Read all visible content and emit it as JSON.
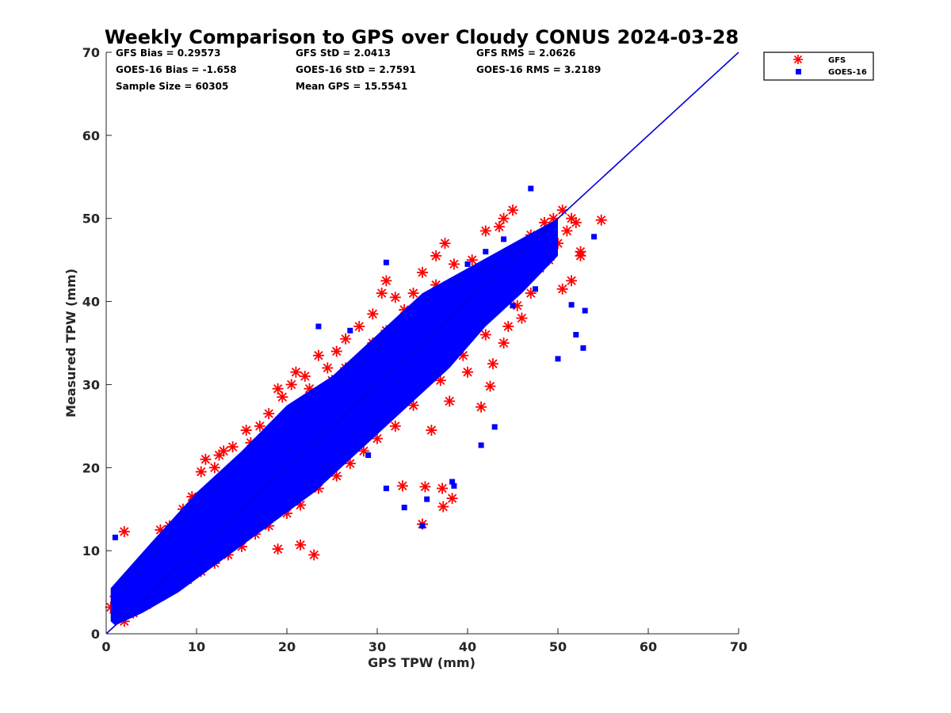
{
  "chart_data": {
    "type": "scatter",
    "title": "Weekly Comparison to GPS over Cloudy CONUS 2024-03-28",
    "xlabel": "GPS TPW (mm)",
    "ylabel": "Measured TPW (mm)",
    "xlim": [
      0,
      70
    ],
    "ylim": [
      0,
      70
    ],
    "x_ticks": [
      "0",
      "10",
      "20",
      "30",
      "40",
      "50",
      "60",
      "70"
    ],
    "y_ticks": [
      "0",
      "10",
      "20",
      "30",
      "40",
      "50",
      "60",
      "70"
    ],
    "grid": false,
    "legend_position": "top-right outside",
    "reference_line": {
      "label": "",
      "x": [
        0,
        70
      ],
      "y": [
        0,
        70
      ],
      "color": "#0000dd"
    },
    "stats": [
      [
        "GFS Bias = 0.29573",
        "GFS StD = 2.0413",
        "GFS RMS = 2.0626"
      ],
      [
        "GOES-16 Bias = -1.658",
        "GOES-16 StD = 2.7591",
        "GOES-16 RMS = 3.2189"
      ],
      [
        "Sample Size = 60305",
        "Mean GPS = 15.5541",
        ""
      ]
    ],
    "series": [
      {
        "name": "GFS",
        "marker": "asterisk",
        "color": "#ff0000",
        "points": [
          [
            0.5,
            3.2
          ],
          [
            1.0,
            4.5
          ],
          [
            1.5,
            3.0
          ],
          [
            2.0,
            1.5
          ],
          [
            2.5,
            2.5
          ],
          [
            3.0,
            3.8
          ],
          [
            3.5,
            5.0
          ],
          [
            4.0,
            6.2
          ],
          [
            4.5,
            8.5
          ],
          [
            5.0,
            9.0
          ],
          [
            5.5,
            6.5
          ],
          [
            6.0,
            12.5
          ],
          [
            7.0,
            13.0
          ],
          [
            7.5,
            11.0
          ],
          [
            8.5,
            15.0
          ],
          [
            9.5,
            16.5
          ],
          [
            10.5,
            19.5
          ],
          [
            11.0,
            21.0
          ],
          [
            12.0,
            20.0
          ],
          [
            12.5,
            21.5
          ],
          [
            13.0,
            22.0
          ],
          [
            14.0,
            22.5
          ],
          [
            15.5,
            24.5
          ],
          [
            16.0,
            23.0
          ],
          [
            17.0,
            25.0
          ],
          [
            18.0,
            26.5
          ],
          [
            19.0,
            29.5
          ],
          [
            19.5,
            28.5
          ],
          [
            20.5,
            30.0
          ],
          [
            21.0,
            31.5
          ],
          [
            22.0,
            31.0
          ],
          [
            22.5,
            29.5
          ],
          [
            23.5,
            33.5
          ],
          [
            24.5,
            32.0
          ],
          [
            25.5,
            34.0
          ],
          [
            26.5,
            35.5
          ],
          [
            28.0,
            37.0
          ],
          [
            29.5,
            38.5
          ],
          [
            31.0,
            42.5
          ],
          [
            32.0,
            40.5
          ],
          [
            33.0,
            39.0
          ],
          [
            34.0,
            41.0
          ],
          [
            35.0,
            43.5
          ],
          [
            36.5,
            45.5
          ],
          [
            37.5,
            47.0
          ],
          [
            38.5,
            44.5
          ],
          [
            40.5,
            45.0
          ],
          [
            42.0,
            48.5
          ],
          [
            43.5,
            49.0
          ],
          [
            44.0,
            50.0
          ],
          [
            45.0,
            51.0
          ],
          [
            47.0,
            48.0
          ],
          [
            48.5,
            49.5
          ],
          [
            49.5,
            50.0
          ],
          [
            50.5,
            51.0
          ],
          [
            51.0,
            48.5
          ],
          [
            51.5,
            50.0
          ],
          [
            52.0,
            49.5
          ],
          [
            52.5,
            45.5
          ],
          [
            52.5,
            46.0
          ],
          [
            49.0,
            45.0
          ],
          [
            51.5,
            42.5
          ],
          [
            50.5,
            41.5
          ],
          [
            50.0,
            47.0
          ],
          [
            48.0,
            44.0
          ],
          [
            46.0,
            46.5
          ],
          [
            54.8,
            49.8
          ],
          [
            2.0,
            12.3
          ],
          [
            10.5,
            10.2
          ],
          [
            19.0,
            10.2
          ],
          [
            21.5,
            10.7
          ],
          [
            23.0,
            9.5
          ],
          [
            35.0,
            13.2
          ],
          [
            19.0,
            16.6
          ],
          [
            32.8,
            17.8
          ],
          [
            35.3,
            17.7
          ],
          [
            37.2,
            17.5
          ],
          [
            38.3,
            16.3
          ],
          [
            37.3,
            15.3
          ],
          [
            42.5,
            29.8
          ],
          [
            41.5,
            27.3
          ],
          [
            42.8,
            32.5
          ],
          [
            36.0,
            24.5
          ],
          [
            38.0,
            28.0
          ],
          [
            40.0,
            31.5
          ],
          [
            44.0,
            35.0
          ],
          [
            46.0,
            38.0
          ],
          [
            47.0,
            41.0
          ],
          [
            45.5,
            39.5
          ],
          [
            44.5,
            37.0
          ],
          [
            42.0,
            36.0
          ],
          [
            39.5,
            33.5
          ],
          [
            37.0,
            30.5
          ],
          [
            34.0,
            27.5
          ],
          [
            32.0,
            25.0
          ],
          [
            30.0,
            23.5
          ],
          [
            28.5,
            22.0
          ],
          [
            27.0,
            20.5
          ],
          [
            25.5,
            19.0
          ],
          [
            23.5,
            17.5
          ],
          [
            21.5,
            15.5
          ],
          [
            20.0,
            14.5
          ],
          [
            18.0,
            13.0
          ],
          [
            16.5,
            12.0
          ],
          [
            15.0,
            10.5
          ],
          [
            13.5,
            9.5
          ],
          [
            12.0,
            8.5
          ],
          [
            10.5,
            7.5
          ],
          [
            9.0,
            6.5
          ],
          [
            7.5,
            5.5
          ],
          [
            6.0,
            4.5
          ],
          [
            4.5,
            3.5
          ],
          [
            3.0,
            2.5
          ],
          [
            1.5,
            2.0
          ],
          [
            14.5,
            18.5
          ],
          [
            16.0,
            20.5
          ],
          [
            17.5,
            22.0
          ],
          [
            19.0,
            23.5
          ],
          [
            20.5,
            25.0
          ],
          [
            22.0,
            27.0
          ],
          [
            23.5,
            28.5
          ],
          [
            25.0,
            30.5
          ],
          [
            26.5,
            32.0
          ],
          [
            28.0,
            33.0
          ],
          [
            29.5,
            35.0
          ],
          [
            31.0,
            36.5
          ],
          [
            33.0,
            37.5
          ],
          [
            34.5,
            38.0
          ],
          [
            36.0,
            39.5
          ],
          [
            38.0,
            41.0
          ],
          [
            40.0,
            42.5
          ],
          [
            41.5,
            43.5
          ],
          [
            43.0,
            44.5
          ],
          [
            44.5,
            45.5
          ],
          [
            46.0,
            46.0
          ],
          [
            47.5,
            46.5
          ],
          [
            10.0,
            13.5
          ],
          [
            12.0,
            15.0
          ],
          [
            8.0,
            11.0
          ],
          [
            6.5,
            9.5
          ],
          [
            5.0,
            8.0
          ],
          [
            3.5,
            6.0
          ],
          [
            2.5,
            4.5
          ],
          [
            1.0,
            2.5
          ],
          [
            30.5,
            41.0
          ],
          [
            36.5,
            42.0
          ],
          [
            41.0,
            40.0
          ],
          [
            43.0,
            42.0
          ],
          [
            39.0,
            38.5
          ],
          [
            35.5,
            35.0
          ],
          [
            33.5,
            33.0
          ],
          [
            31.5,
            31.0
          ],
          [
            29.0,
            28.5
          ],
          [
            27.0,
            27.0
          ],
          [
            25.0,
            25.5
          ],
          [
            23.0,
            23.0
          ],
          [
            21.0,
            21.5
          ],
          [
            19.0,
            19.5
          ],
          [
            17.0,
            17.5
          ],
          [
            15.0,
            16.0
          ],
          [
            13.0,
            14.0
          ],
          [
            11.0,
            12.0
          ],
          [
            9.0,
            10.0
          ],
          [
            7.0,
            8.0
          ]
        ]
      },
      {
        "name": "GOES-16",
        "marker": "square",
        "color": "#0000ff",
        "points": [
          [
            1.0,
            11.6
          ],
          [
            35.0,
            13.0
          ],
          [
            47.0,
            53.6
          ],
          [
            54.0,
            47.8
          ],
          [
            53.0,
            38.9
          ],
          [
            52.8,
            34.4
          ],
          [
            51.5,
            39.6
          ],
          [
            50.0,
            33.1
          ],
          [
            52.0,
            36.0
          ],
          [
            33.0,
            15.2
          ],
          [
            35.5,
            16.2
          ],
          [
            38.5,
            17.8
          ],
          [
            38.3,
            18.3
          ],
          [
            41.5,
            22.7
          ],
          [
            43.0,
            24.9
          ],
          [
            31.0,
            44.7
          ],
          [
            27.0,
            36.5
          ],
          [
            23.5,
            37.0
          ],
          [
            31.0,
            17.5
          ],
          [
            29.0,
            21.5
          ],
          [
            45.0,
            39.5
          ],
          [
            47.5,
            41.5
          ],
          [
            48.0,
            44.5
          ],
          [
            46.5,
            47.0
          ],
          [
            44.0,
            47.5
          ],
          [
            42.0,
            46.0
          ],
          [
            40.0,
            44.5
          ],
          [
            38.0,
            42.0
          ],
          [
            36.0,
            40.0
          ],
          [
            34.0,
            37.5
          ]
        ]
      }
    ]
  },
  "legend": {
    "items": [
      "GFS",
      "GOES-16"
    ]
  },
  "colors": {
    "gfs": "#ff0000",
    "goes": "#0000ff",
    "one_to_one_line": "#0000dd",
    "axis": "#262626"
  }
}
